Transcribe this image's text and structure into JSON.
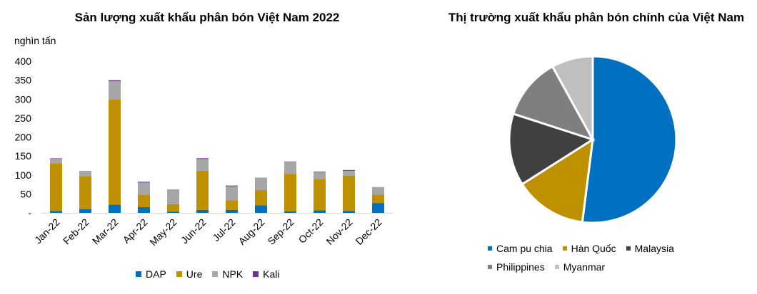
{
  "chart_data": [
    {
      "type": "bar",
      "stacked": true,
      "title": "Sản lượng xuất khẩu phân bón Việt Nam 2022",
      "ylabel": "nghìn tấn",
      "ylim": [
        0,
        400
      ],
      "yticks": [
        "-",
        "50",
        "100",
        "150",
        "200",
        "250",
        "300",
        "350",
        "400"
      ],
      "categories": [
        "Jan-22",
        "Feb-22",
        "Mar-22",
        "Apr-22",
        "May-22",
        "Jun-22",
        "Jul-22",
        "Aug-22",
        "Sep-22",
        "Oct-22",
        "Nov-22",
        "Dec-22"
      ],
      "series": [
        {
          "name": "DAP",
          "color": "#0070c0",
          "values": [
            5,
            10,
            22,
            15,
            3,
            8,
            8,
            20,
            4,
            7,
            5,
            26
          ]
        },
        {
          "name": "Ure",
          "color": "#bf9000",
          "values": [
            126,
            87,
            278,
            32,
            20,
            103,
            25,
            40,
            99,
            82,
            93,
            22
          ]
        },
        {
          "name": "NPK",
          "color": "#a6a6a6",
          "values": [
            12,
            14,
            47,
            33,
            39,
            31,
            37,
            33,
            33,
            19,
            13,
            20
          ]
        },
        {
          "name": "Kali",
          "color": "#7030a0",
          "values": [
            1,
            0,
            3,
            2,
            0,
            2,
            2,
            0,
            0,
            1,
            2,
            0
          ]
        }
      ],
      "legend_position": "bottom"
    },
    {
      "type": "pie",
      "title": "Thị trường xuất khẩu phân bón chính của Việt Nam",
      "slices": [
        {
          "name": "Cam pu chia",
          "color": "#0070c0",
          "value": 52
        },
        {
          "name": "Hàn Quốc",
          "color": "#bf9000",
          "value": 14
        },
        {
          "name": "Malaysia",
          "color": "#404040",
          "value": 14
        },
        {
          "name": "Philippines",
          "color": "#7f7f7f",
          "value": 12
        },
        {
          "name": "Myanmar",
          "color": "#bfbfbf",
          "value": 8
        }
      ],
      "legend_position": "bottom"
    }
  ]
}
